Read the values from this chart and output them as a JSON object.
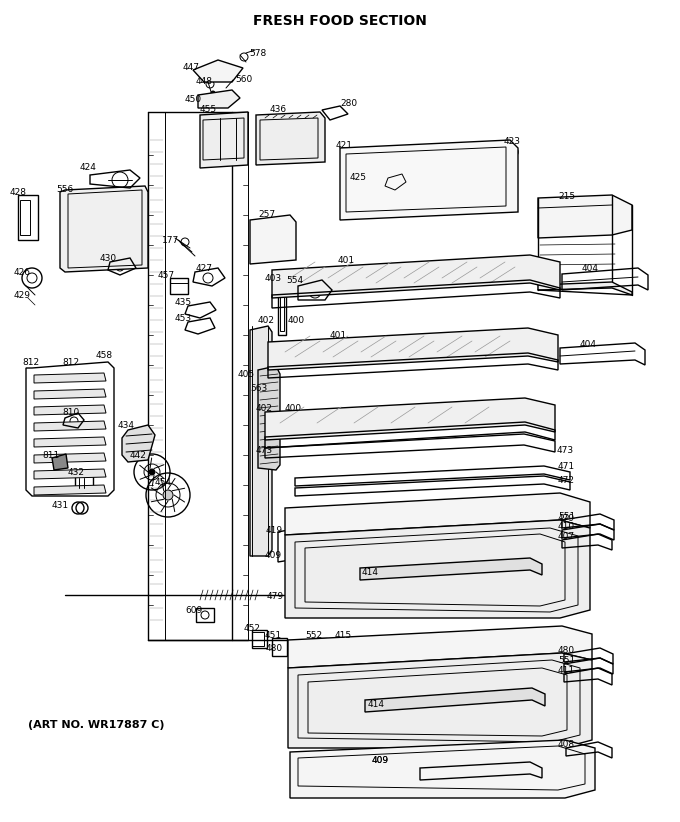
{
  "title": "FRESH FOOD SECTION",
  "subtitle": "(ART NO. WR17887 C)",
  "title_fontsize": 10,
  "subtitle_fontsize": 8,
  "background_color": "#ffffff",
  "fig_width": 6.8,
  "fig_height": 8.22,
  "dpi": 100
}
